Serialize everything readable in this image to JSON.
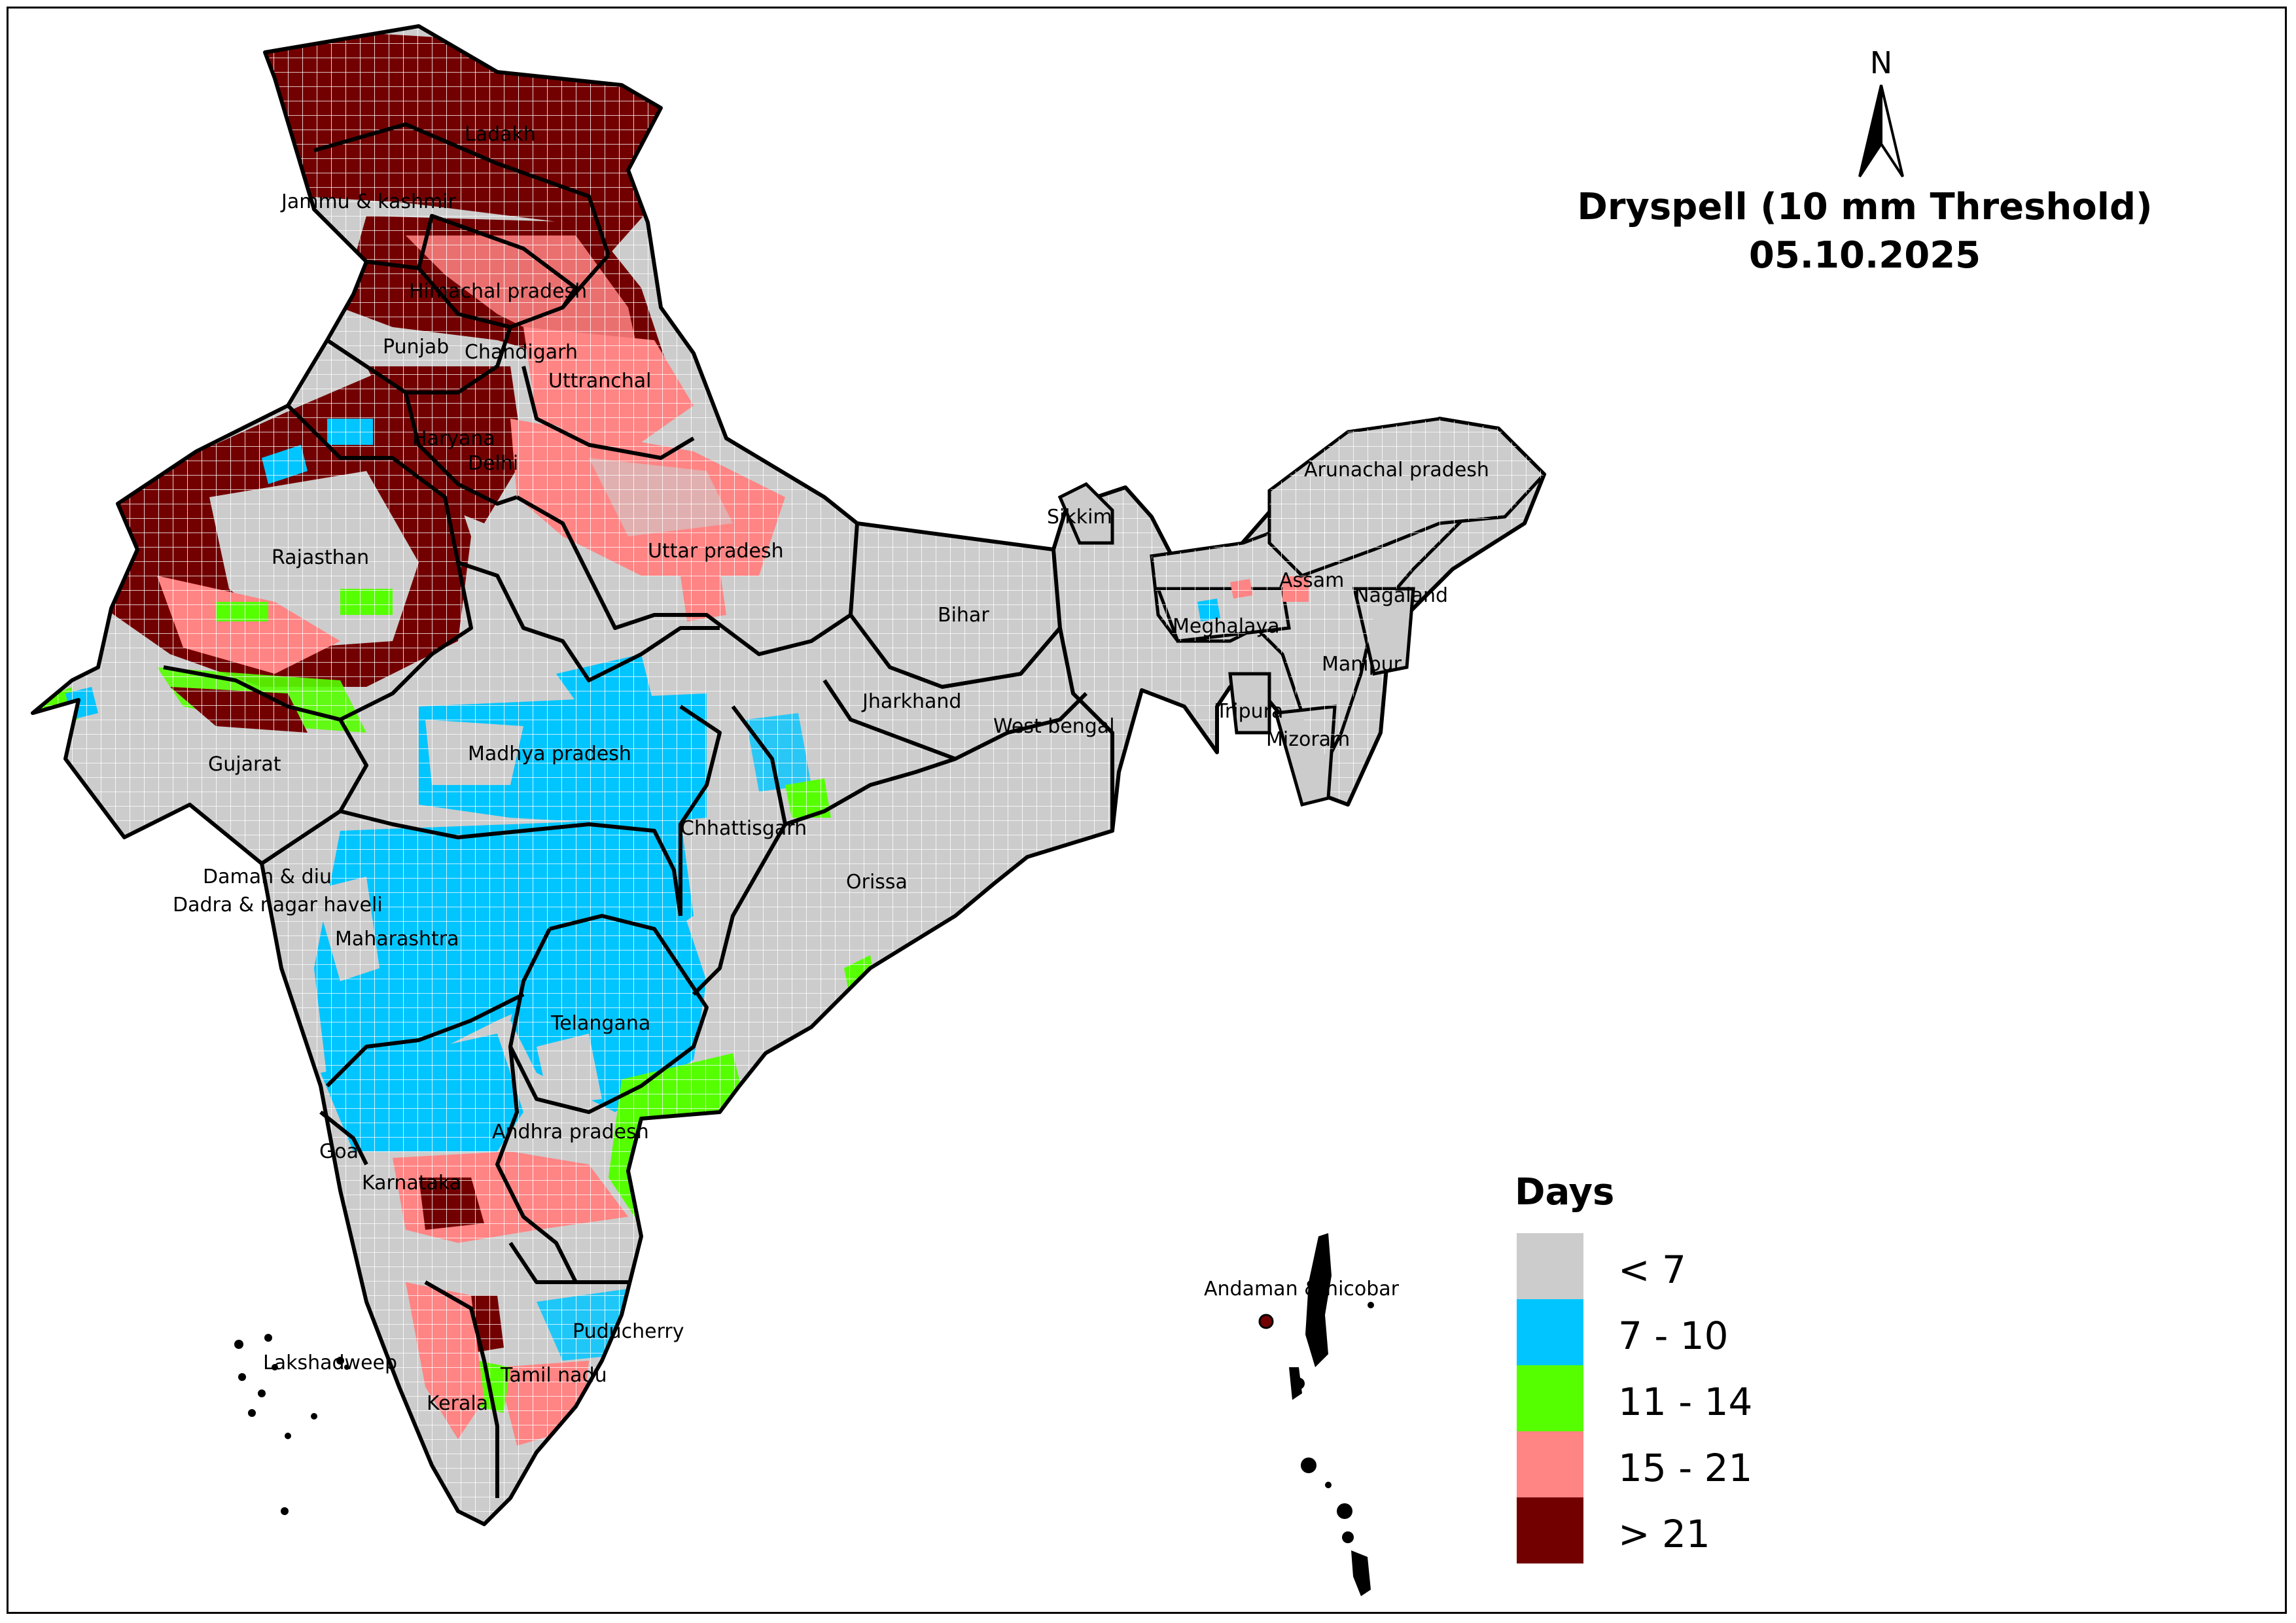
{
  "map": {
    "title_line1": "Dryspell (10 mm Threshold)",
    "title_line2": "05.10.2025",
    "north_label": "N",
    "states": [
      {
        "name": "Ladakh",
        "data_name": "label-ladakh"
      },
      {
        "name": "Jammu & kashmir",
        "data_name": "label-jammu-kashmir"
      },
      {
        "name": "Himachal pradesh",
        "data_name": "label-himachal-pradesh"
      },
      {
        "name": "Punjab",
        "data_name": "label-punjab"
      },
      {
        "name": "Chandigarh",
        "data_name": "label-chandigarh"
      },
      {
        "name": "Uttranchal",
        "data_name": "label-uttranchal"
      },
      {
        "name": "Haryana",
        "data_name": "label-haryana"
      },
      {
        "name": "Delhi",
        "data_name": "label-delhi"
      },
      {
        "name": "Rajasthan",
        "data_name": "label-rajasthan"
      },
      {
        "name": "Uttar pradesh",
        "data_name": "label-uttar-pradesh"
      },
      {
        "name": "Bihar",
        "data_name": "label-bihar"
      },
      {
        "name": "Sikkim",
        "data_name": "label-sikkim"
      },
      {
        "name": "Arunachal pradesh",
        "data_name": "label-arunachal-pradesh"
      },
      {
        "name": "Assam",
        "data_name": "label-assam"
      },
      {
        "name": "Nagaland",
        "data_name": "label-nagaland"
      },
      {
        "name": "Meghalaya",
        "data_name": "label-meghalaya"
      },
      {
        "name": "Manipur",
        "data_name": "label-manipur"
      },
      {
        "name": "Tripura",
        "data_name": "label-tripura"
      },
      {
        "name": "Mizoram",
        "data_name": "label-mizoram"
      },
      {
        "name": "Jharkhand",
        "data_name": "label-jharkhand"
      },
      {
        "name": "West bengal",
        "data_name": "label-west-bengal"
      },
      {
        "name": "Gujarat",
        "data_name": "label-gujarat"
      },
      {
        "name": "Madhya pradesh",
        "data_name": "label-madhya-pradesh"
      },
      {
        "name": "Chhattisgarh",
        "data_name": "label-chhattisgarh"
      },
      {
        "name": "Orissa",
        "data_name": "label-orissa"
      },
      {
        "name": "Daman & diu",
        "data_name": "label-daman-diu"
      },
      {
        "name": "Dadra & nagar haveli",
        "data_name": "label-dadra-nagar-haveli"
      },
      {
        "name": "Maharashtra",
        "data_name": "label-maharashtra"
      },
      {
        "name": "Telangana",
        "data_name": "label-telangana"
      },
      {
        "name": "Andhra pradesh",
        "data_name": "label-andhra-pradesh"
      },
      {
        "name": "Goa",
        "data_name": "label-goa"
      },
      {
        "name": "Karnataka",
        "data_name": "label-karnataka"
      },
      {
        "name": "Puducherry",
        "data_name": "label-puducherry"
      },
      {
        "name": "Lakshadweep",
        "data_name": "label-lakshadweep"
      },
      {
        "name": "Tamil nadu",
        "data_name": "label-tamil-nadu"
      },
      {
        "name": "Kerala",
        "data_name": "label-kerala"
      },
      {
        "name": "Andaman & nicobar",
        "data_name": "label-andaman-nicobar"
      }
    ]
  },
  "legend": {
    "title": "Days",
    "items": [
      {
        "label": "< 7",
        "color": "#cccccc"
      },
      {
        "label": "7 - 10",
        "color": "#00c5ff"
      },
      {
        "label": "11 - 14",
        "color": "#55ff00"
      },
      {
        "label": "15 - 21",
        "color": "#ff8484"
      },
      {
        "label": "> 21",
        "color": "#730000"
      }
    ]
  }
}
